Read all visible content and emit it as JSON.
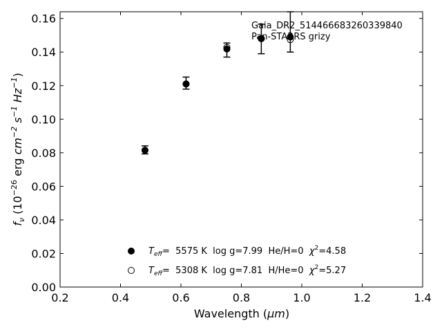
{
  "chart_data": {
    "type": "scatter",
    "title": "",
    "xlabel_main": "Wavelength (",
    "xlabel_unit": "μm",
    "xlabel_close": ")",
    "ylabel_parts": {
      "fnu": "f",
      "fnu_sub": "ν",
      "prefix": " (10",
      "exp": "−26",
      "erg": " erg ",
      "cm": "cm",
      "cm_exp": "−2",
      "s": " s",
      "s_exp": "−1",
      "hz": " Hz",
      "hz_exp": "−1",
      "close": ")"
    },
    "xlim": [
      0.2,
      1.4
    ],
    "ylim": [
      0.0,
      0.164
    ],
    "xticks": [
      0.2,
      0.4,
      0.6,
      0.8,
      1.0,
      1.2,
      1.4
    ],
    "xtick_labels": [
      "0.2",
      "0.4",
      "0.6",
      "0.8",
      "1.0",
      "1.2",
      "1.4"
    ],
    "yticks": [
      0.0,
      0.02,
      0.04,
      0.06,
      0.08,
      0.1,
      0.12,
      0.14,
      0.16
    ],
    "ytick_labels": [
      "0.00",
      "0.02",
      "0.04",
      "0.06",
      "0.08",
      "0.10",
      "0.12",
      "0.14",
      "0.16"
    ],
    "grid": false,
    "annotations": [
      "Gaia_DR2_514466683260339840",
      "Pan-STARRS grizy"
    ],
    "observed": {
      "x": [
        0.481,
        0.617,
        0.752,
        0.866,
        0.962
      ],
      "y": [
        0.0817,
        0.1215,
        0.1412,
        0.1478,
        0.152
      ],
      "yerr": [
        0.0024,
        0.0036,
        0.0042,
        0.0088,
        0.012
      ]
    },
    "series": [
      {
        "marker": "filled",
        "x": [
          0.481,
          0.617,
          0.752,
          0.866,
          0.962
        ],
        "y": [
          0.0815,
          0.121,
          0.1418,
          0.148,
          0.149
        ]
      },
      {
        "marker": "open",
        "x": [
          0.481,
          0.617,
          0.752,
          0.866,
          0.962
        ],
        "y": [
          0.0815,
          0.121,
          0.1428,
          0.148,
          0.1474
        ]
      }
    ],
    "legend": [
      {
        "marker": "filled",
        "teff": "T",
        "teff_sub": "eff",
        "text": "=  5575 K  log g=7.99  He/H=0  ",
        "chi": "χ",
        "chi_exp": "2",
        "chi_val": "=4.58"
      },
      {
        "marker": "open",
        "teff": "T",
        "teff_sub": "eff",
        "text": "=  5308 K  log g=7.81  H/He=0  ",
        "chi": "χ",
        "chi_exp": "2",
        "chi_val": "=5.27"
      }
    ],
    "legend_position": "lower-center"
  }
}
